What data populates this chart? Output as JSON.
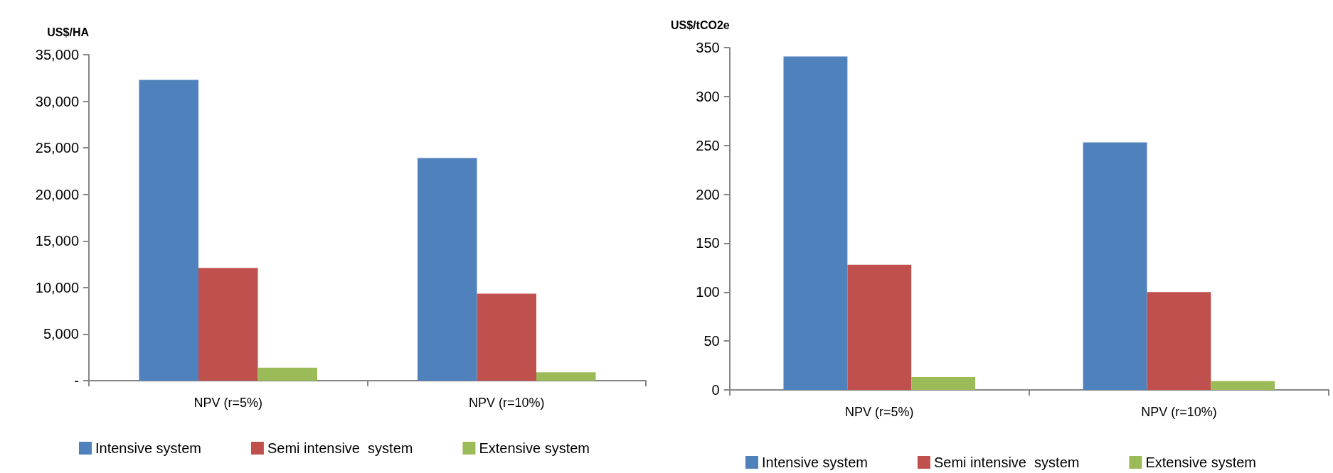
{
  "chart_data": [
    {
      "type": "bar",
      "ylabel": "US$/HA",
      "categories": [
        "NPV (r=5%)",
        "NPV (r=10%)"
      ],
      "series": [
        {
          "name": "Intensive system",
          "color": "#4f81bd",
          "values": [
            32300,
            23900
          ]
        },
        {
          "name": "Semi intensive  system",
          "color": "#c0504d",
          "values": [
            12100,
            9350
          ]
        },
        {
          "name": "Extensive system",
          "color": "#9bbb59",
          "values": [
            1400,
            900
          ]
        }
      ],
      "ylim": [
        0,
        35000
      ],
      "yticks": [
        {
          "value": 0,
          "label": "-"
        },
        {
          "value": 5000,
          "label": "5,000"
        },
        {
          "value": 10000,
          "label": "10,000"
        },
        {
          "value": 15000,
          "label": "15,000"
        },
        {
          "value": 20000,
          "label": "20,000"
        },
        {
          "value": 25000,
          "label": "25,000"
        },
        {
          "value": 30000,
          "label": "30,000"
        },
        {
          "value": 35000,
          "label": "35,000"
        }
      ],
      "grid": false,
      "legend": "bottom"
    },
    {
      "type": "bar",
      "ylabel": "US$/tCO2e",
      "categories": [
        "NPV (r=5%)",
        "NPV (r=10%)"
      ],
      "series": [
        {
          "name": "Intensive system",
          "color": "#4f81bd",
          "values": [
            341,
            253
          ]
        },
        {
          "name": "Semi intensive  system",
          "color": "#c0504d",
          "values": [
            128,
            100
          ]
        },
        {
          "name": "Extensive system",
          "color": "#9bbb59",
          "values": [
            13,
            9
          ]
        }
      ],
      "ylim": [
        0,
        350
      ],
      "yticks": [
        0,
        50,
        100,
        150,
        200,
        250,
        300,
        350
      ],
      "grid": false,
      "legend": "bottom"
    }
  ]
}
